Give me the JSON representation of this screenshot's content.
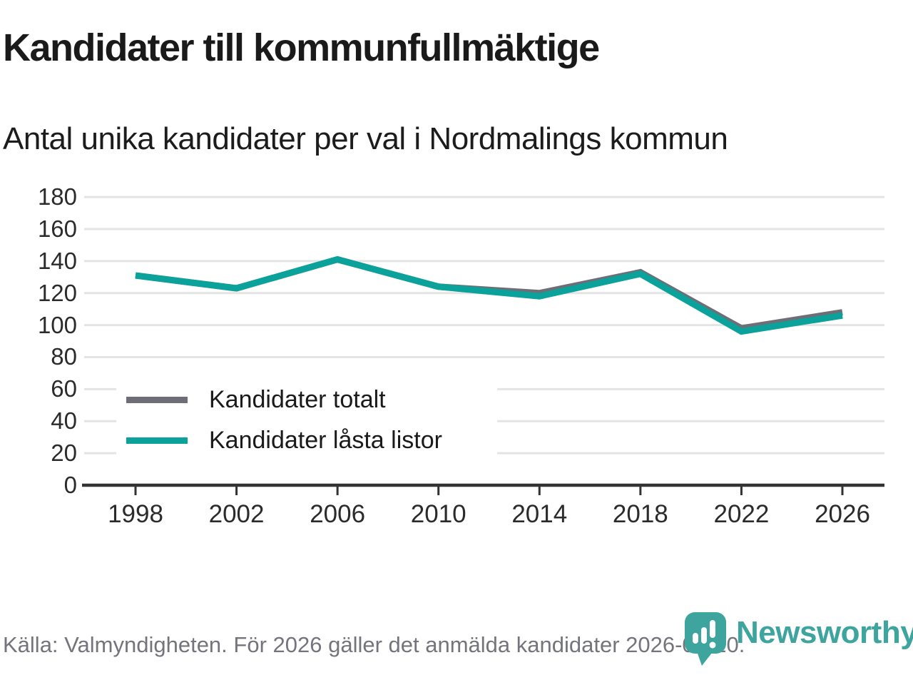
{
  "header": {
    "title": "Kandidater till kommunfullmäktige",
    "subtitle": "Antal unika kandidater per val i Nordmalings kommun"
  },
  "chart_data": {
    "type": "line",
    "categories": [
      "1998",
      "2002",
      "2006",
      "2010",
      "2014",
      "2018",
      "2022",
      "2026"
    ],
    "series": [
      {
        "name": "Kandidater totalt",
        "color": "#6e6e76",
        "values": [
          131,
          123,
          141,
          124,
          120,
          133,
          98,
          108
        ]
      },
      {
        "name": "Kandidater låsta listor",
        "color": "#0aa29a",
        "values": [
          131,
          123,
          141,
          124,
          118,
          132,
          96,
          106
        ]
      }
    ],
    "title": "Kandidater till kommunfullmäktige",
    "xlabel": "",
    "ylabel": "",
    "ylim": [
      0,
      180
    ],
    "ytick_step": 20,
    "grid": "horizontal",
    "grid_color": "#e4e4e4",
    "axis_color": "#333333",
    "legend_position": "inside-left-middle",
    "line_width": 9
  },
  "footer": {
    "source": "Källa: Valmyndigheten. För 2026 gäller det anmälda kandidater 2026-04-10.",
    "brand": "Newsworthy"
  },
  "colors": {
    "teal_line": "#0aa29a",
    "gray_line": "#6e6e76",
    "logo_teal": "#3da49e",
    "grid": "#e4e4e4",
    "axis": "#333333",
    "muted_text": "#74747c"
  }
}
